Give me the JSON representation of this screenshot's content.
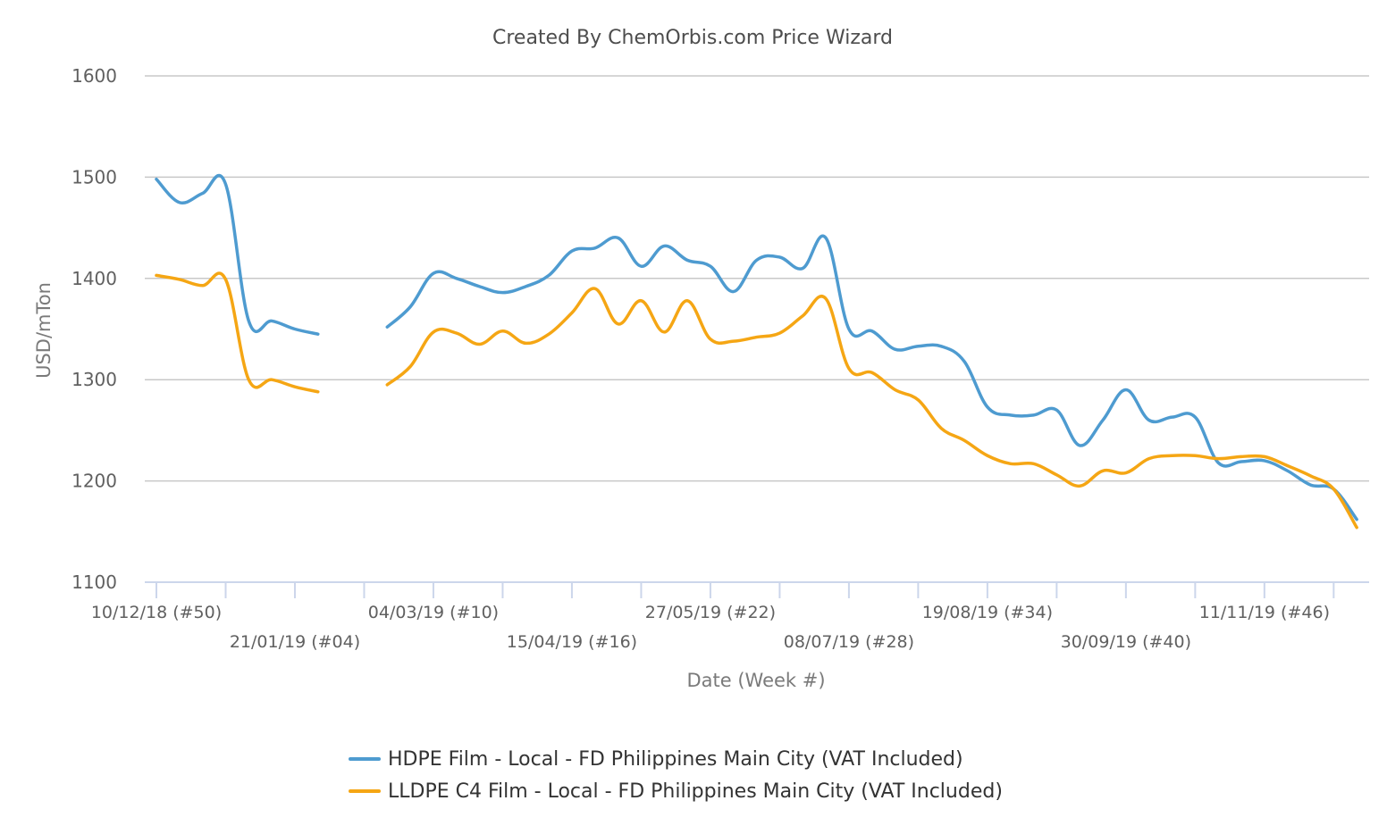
{
  "chart_data": {
    "type": "line",
    "title": "Created By ChemOrbis.com Price Wizard",
    "xlabel": "Date (Week #)",
    "ylabel": "USD/mTon",
    "ylim": [
      1100,
      1600
    ],
    "yticks": [
      1100,
      1200,
      1300,
      1400,
      1500,
      1600
    ],
    "x_tick_labels": [
      "10/12/18 (#50)",
      "21/01/19 (#04)",
      "04/03/19 (#10)",
      "15/04/19 (#16)",
      "27/05/19 (#22)",
      "08/07/19 (#28)",
      "19/08/19 (#34)",
      "30/09/19 (#40)",
      "11/11/19 (#46)"
    ],
    "grid": true,
    "legend_position": "bottom-center",
    "series": [
      {
        "name": "HDPE Film - Local - FD Philippines Main City (VAT Included)",
        "color": "#4e9bd0",
        "points": [
          [
            "2018-12-10",
            1498
          ],
          [
            "2018-12-17",
            1475
          ],
          [
            "2018-12-24",
            1484
          ],
          [
            "2018-12-31",
            1493
          ],
          [
            "2019-01-07",
            1358
          ],
          [
            "2019-01-14",
            1358
          ],
          [
            "2019-01-21",
            1350
          ],
          [
            "2019-01-28",
            1345
          ],
          [
            "2019-02-04",
            null
          ],
          [
            "2019-02-11",
            null
          ],
          [
            "2019-02-18",
            1352
          ],
          [
            "2019-02-25",
            1372
          ],
          [
            "2019-03-04",
            1405
          ],
          [
            "2019-03-11",
            1400
          ],
          [
            "2019-03-18",
            1392
          ],
          [
            "2019-03-25",
            1386
          ],
          [
            "2019-04-01",
            1392
          ],
          [
            "2019-04-08",
            1403
          ],
          [
            "2019-04-15",
            1427
          ],
          [
            "2019-04-22",
            1430
          ],
          [
            "2019-04-29",
            1440
          ],
          [
            "2019-05-06",
            1412
          ],
          [
            "2019-05-13",
            1432
          ],
          [
            "2019-05-20",
            1418
          ],
          [
            "2019-05-27",
            1412
          ],
          [
            "2019-06-03",
            1387
          ],
          [
            "2019-06-10",
            1418
          ],
          [
            "2019-06-17",
            1421
          ],
          [
            "2019-06-24",
            1410
          ],
          [
            "2019-07-01",
            1440
          ],
          [
            "2019-07-08",
            1350
          ],
          [
            "2019-07-15",
            1348
          ],
          [
            "2019-07-22",
            1330
          ],
          [
            "2019-07-29",
            1333
          ],
          [
            "2019-08-05",
            1333
          ],
          [
            "2019-08-12",
            1318
          ],
          [
            "2019-08-19",
            1273
          ],
          [
            "2019-08-26",
            1265
          ],
          [
            "2019-09-02",
            1265
          ],
          [
            "2019-09-09",
            1270
          ],
          [
            "2019-09-16",
            1235
          ],
          [
            "2019-09-23",
            1260
          ],
          [
            "2019-09-30",
            1290
          ],
          [
            "2019-10-07",
            1260
          ],
          [
            "2019-10-14",
            1263
          ],
          [
            "2019-10-21",
            1263
          ],
          [
            "2019-10-28",
            1218
          ],
          [
            "2019-11-04",
            1219
          ],
          [
            "2019-11-11",
            1220
          ],
          [
            "2019-11-18",
            1210
          ],
          [
            "2019-11-25",
            1196
          ],
          [
            "2019-12-02",
            1192
          ],
          [
            "2019-12-09",
            1162
          ]
        ]
      },
      {
        "name": "LLDPE C4 Film - Local - FD Philippines Main City (VAT Included)",
        "color": "#f5a614",
        "points": [
          [
            "2018-12-10",
            1403
          ],
          [
            "2018-12-17",
            1399
          ],
          [
            "2018-12-24",
            1393
          ],
          [
            "2018-12-31",
            1399
          ],
          [
            "2019-01-07",
            1300
          ],
          [
            "2019-01-14",
            1300
          ],
          [
            "2019-01-21",
            1293
          ],
          [
            "2019-01-28",
            1288
          ],
          [
            "2019-02-04",
            null
          ],
          [
            "2019-02-11",
            null
          ],
          [
            "2019-02-18",
            1295
          ],
          [
            "2019-02-25",
            1313
          ],
          [
            "2019-03-04",
            1347
          ],
          [
            "2019-03-11",
            1346
          ],
          [
            "2019-03-18",
            1335
          ],
          [
            "2019-03-25",
            1348
          ],
          [
            "2019-04-01",
            1336
          ],
          [
            "2019-04-08",
            1345
          ],
          [
            "2019-04-15",
            1366
          ],
          [
            "2019-04-22",
            1390
          ],
          [
            "2019-04-29",
            1355
          ],
          [
            "2019-05-06",
            1378
          ],
          [
            "2019-05-13",
            1347
          ],
          [
            "2019-05-20",
            1378
          ],
          [
            "2019-05-27",
            1340
          ],
          [
            "2019-06-03",
            1338
          ],
          [
            "2019-06-10",
            1342
          ],
          [
            "2019-06-17",
            1346
          ],
          [
            "2019-06-24",
            1363
          ],
          [
            "2019-07-01",
            1380
          ],
          [
            "2019-07-08",
            1311
          ],
          [
            "2019-07-15",
            1307
          ],
          [
            "2019-07-22",
            1290
          ],
          [
            "2019-07-29",
            1280
          ],
          [
            "2019-08-05",
            1252
          ],
          [
            "2019-08-12",
            1240
          ],
          [
            "2019-08-19",
            1225
          ],
          [
            "2019-08-26",
            1217
          ],
          [
            "2019-09-02",
            1217
          ],
          [
            "2019-09-09",
            1206
          ],
          [
            "2019-09-16",
            1195
          ],
          [
            "2019-09-23",
            1210
          ],
          [
            "2019-09-30",
            1208
          ],
          [
            "2019-10-07",
            1222
          ],
          [
            "2019-10-14",
            1225
          ],
          [
            "2019-10-21",
            1225
          ],
          [
            "2019-10-28",
            1222
          ],
          [
            "2019-11-04",
            1224
          ],
          [
            "2019-11-11",
            1224
          ],
          [
            "2019-11-18",
            1215
          ],
          [
            "2019-11-25",
            1205
          ],
          [
            "2019-12-02",
            1192
          ],
          [
            "2019-12-09",
            1154
          ]
        ]
      }
    ]
  }
}
